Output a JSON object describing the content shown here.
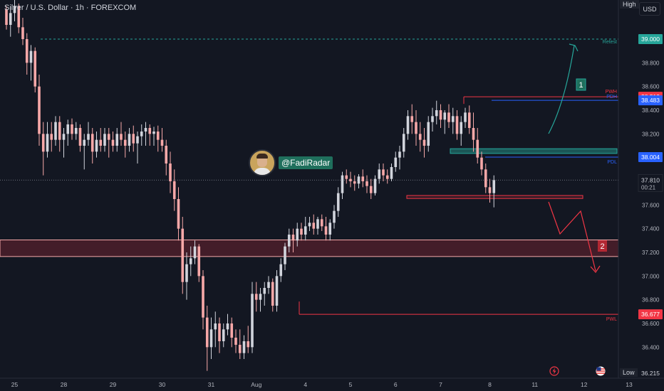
{
  "header": {
    "title": "Silver / U.S. Dollar · 1h · FOREXCOM",
    "currency": "USD"
  },
  "author": {
    "handle": "@FadiRadar"
  },
  "scale_tags": {
    "high": "High",
    "low": "Low"
  },
  "icons": {
    "alert": "flash-icon",
    "flag": "us-flag-icon"
  },
  "colors": {
    "bg": "#131722",
    "up": "#d1d4dc",
    "down": "#f7a8a8",
    "red": "#f23645",
    "teal": "#26a69a",
    "blue": "#2962ff"
  },
  "chart_data": {
    "type": "candlestick",
    "ylim": [
      36.15,
      39.33
    ],
    "y_ticks": [
      "38.800",
      "38.600",
      "38.400",
      "38.200",
      "37.800",
      "37.600",
      "37.400",
      "37.200",
      "37.000",
      "36.800",
      "36.600",
      "36.400"
    ],
    "x_labels": [
      {
        "label": "25",
        "idx": 2
      },
      {
        "label": "28",
        "idx": 14
      },
      {
        "label": "29",
        "idx": 26
      },
      {
        "label": "30",
        "idx": 38
      },
      {
        "label": "31",
        "idx": 50
      },
      {
        "label": "Aug",
        "idx": 61
      },
      {
        "label": "4",
        "idx": 73
      },
      {
        "label": "5",
        "idx": 84
      },
      {
        "label": "6",
        "idx": 95
      },
      {
        "label": "7",
        "idx": 106
      },
      {
        "label": "8",
        "idx": 118
      },
      {
        "label": "11",
        "idx": 129
      },
      {
        "label": "12",
        "idx": 141
      },
      {
        "label": "13",
        "idx": 152
      }
    ],
    "current_price": "37.810",
    "countdown": "00:21",
    "levels": [
      {
        "label": "Retest",
        "value": "39.000",
        "price": 39.0,
        "style": "dashed-teal"
      },
      {
        "label": "PWH",
        "value": "38.513",
        "price": 38.513,
        "style": "red"
      },
      {
        "label": "PDH",
        "value": "38.483",
        "price": 38.483,
        "style": "blue"
      },
      {
        "label": "PDL",
        "value": "38.004",
        "price": 38.004,
        "style": "blue"
      },
      {
        "label": "PWL",
        "value": "36.677",
        "price": 36.677,
        "style": "red"
      }
    ],
    "high_value": "",
    "low_value": "36.215",
    "zones": [
      {
        "name": "demand-zone",
        "from": 37.165,
        "to": 37.305
      },
      {
        "name": "resistance-zone",
        "from": 38.035,
        "to": 38.075
      },
      {
        "name": "support-band",
        "from": 37.655,
        "to": 37.68
      }
    ],
    "scenarios": [
      {
        "label": "1",
        "direction": "up"
      },
      {
        "label": "2",
        "direction": "down"
      }
    ],
    "candles": [
      [
        39.25,
        39.28,
        39.08,
        39.12
      ],
      [
        39.12,
        39.27,
        39.02,
        39.22
      ],
      [
        39.22,
        39.35,
        39.15,
        39.28
      ],
      [
        39.28,
        39.3,
        39.05,
        39.1
      ],
      [
        39.1,
        39.18,
        38.95,
        39.0
      ],
      [
        39.0,
        39.05,
        38.7,
        38.8
      ],
      [
        38.8,
        38.95,
        38.65,
        38.9
      ],
      [
        38.9,
        38.93,
        38.55,
        38.6
      ],
      [
        38.6,
        38.7,
        38.1,
        38.2
      ],
      [
        38.2,
        38.3,
        37.85,
        38.05
      ],
      [
        38.05,
        38.3,
        38.0,
        38.2
      ],
      [
        38.2,
        38.3,
        38.05,
        38.15
      ],
      [
        38.15,
        38.35,
        38.1,
        38.3
      ],
      [
        38.3,
        38.35,
        38.05,
        38.15
      ],
      [
        38.15,
        38.25,
        38.0,
        38.2
      ],
      [
        38.2,
        38.32,
        38.1,
        38.28
      ],
      [
        38.28,
        38.33,
        38.15,
        38.2
      ],
      [
        38.2,
        38.3,
        38.15,
        38.25
      ],
      [
        38.25,
        38.28,
        38.05,
        38.1
      ],
      [
        38.1,
        38.2,
        37.9,
        38.15
      ],
      [
        38.15,
        38.3,
        38.1,
        38.2
      ],
      [
        38.2,
        38.25,
        37.95,
        38.05
      ],
      [
        38.05,
        38.22,
        38.0,
        38.15
      ],
      [
        38.15,
        38.25,
        38.05,
        38.1
      ],
      [
        38.1,
        38.25,
        38.05,
        38.2
      ],
      [
        38.2,
        38.25,
        38.0,
        38.15
      ],
      [
        38.15,
        38.22,
        38.05,
        38.1
      ],
      [
        38.1,
        38.25,
        38.05,
        38.2
      ],
      [
        38.2,
        38.3,
        38.1,
        38.15
      ],
      [
        38.15,
        38.22,
        38.0,
        38.1
      ],
      [
        38.1,
        38.25,
        38.05,
        38.2
      ],
      [
        38.2,
        38.27,
        38.05,
        38.12
      ],
      [
        38.12,
        38.22,
        37.95,
        38.18
      ],
      [
        38.18,
        38.28,
        38.1,
        38.22
      ],
      [
        38.22,
        38.3,
        38.1,
        38.25
      ],
      [
        38.25,
        38.28,
        38.1,
        38.2
      ],
      [
        38.2,
        38.26,
        38.1,
        38.22
      ],
      [
        38.22,
        38.27,
        38.05,
        38.15
      ],
      [
        38.15,
        38.25,
        38.05,
        38.1
      ],
      [
        38.1,
        38.15,
        37.85,
        37.95
      ],
      [
        37.95,
        38.05,
        37.7,
        37.8
      ],
      [
        37.8,
        37.9,
        37.55,
        37.65
      ],
      [
        37.65,
        37.75,
        37.3,
        37.4
      ],
      [
        37.4,
        37.5,
        36.85,
        36.95
      ],
      [
        36.95,
        37.2,
        36.8,
        37.1
      ],
      [
        37.1,
        37.25,
        37.0,
        37.15
      ],
      [
        37.15,
        37.3,
        37.1,
        37.25
      ],
      [
        37.25,
        37.27,
        36.95,
        37.0
      ],
      [
        37.0,
        37.05,
        36.55,
        36.65
      ],
      [
        36.65,
        36.75,
        36.2,
        36.4
      ],
      [
        36.4,
        36.65,
        36.3,
        36.55
      ],
      [
        36.55,
        36.7,
        36.4,
        36.6
      ],
      [
        36.6,
        36.65,
        36.35,
        36.45
      ],
      [
        36.45,
        36.6,
        36.4,
        36.55
      ],
      [
        36.55,
        36.68,
        36.5,
        36.6
      ],
      [
        36.6,
        36.65,
        36.4,
        36.48
      ],
      [
        36.48,
        36.55,
        36.35,
        36.42
      ],
      [
        36.42,
        36.55,
        36.3,
        36.35
      ],
      [
        36.35,
        36.5,
        36.3,
        36.45
      ],
      [
        36.45,
        36.58,
        36.35,
        36.4
      ],
      [
        36.4,
        36.95,
        36.35,
        36.85
      ],
      [
        36.85,
        36.95,
        36.7,
        36.8
      ],
      [
        36.8,
        36.9,
        36.7,
        36.85
      ],
      [
        36.85,
        36.95,
        36.75,
        36.9
      ],
      [
        36.9,
        37.0,
        36.85,
        36.95
      ],
      [
        36.95,
        36.98,
        36.7,
        36.75
      ],
      [
        36.75,
        37.05,
        36.7,
        37.0
      ],
      [
        37.0,
        37.15,
        36.95,
        37.1
      ],
      [
        37.1,
        37.28,
        37.05,
        37.25
      ],
      [
        37.25,
        37.4,
        37.2,
        37.35
      ],
      [
        37.35,
        37.4,
        37.2,
        37.3
      ],
      [
        37.3,
        37.45,
        37.25,
        37.4
      ],
      [
        37.4,
        37.45,
        37.3,
        37.35
      ],
      [
        37.35,
        37.5,
        37.3,
        37.42
      ],
      [
        37.42,
        37.5,
        37.38,
        37.45
      ],
      [
        37.45,
        37.52,
        37.35,
        37.4
      ],
      [
        37.4,
        37.5,
        37.35,
        37.48
      ],
      [
        37.48,
        37.52,
        37.38,
        37.42
      ],
      [
        37.42,
        37.5,
        37.3,
        37.35
      ],
      [
        37.35,
        37.48,
        37.3,
        37.45
      ],
      [
        37.45,
        37.6,
        37.4,
        37.55
      ],
      [
        37.55,
        37.75,
        37.5,
        37.7
      ],
      [
        37.7,
        37.88,
        37.65,
        37.85
      ],
      [
        37.85,
        37.9,
        37.78,
        37.82
      ],
      [
        37.82,
        37.88,
        37.75,
        37.8
      ],
      [
        37.8,
        37.85,
        37.72,
        37.78
      ],
      [
        37.78,
        37.86,
        37.74,
        37.84
      ],
      [
        37.84,
        37.9,
        37.75,
        37.8
      ],
      [
        37.8,
        37.85,
        37.7,
        37.76
      ],
      [
        37.76,
        37.82,
        37.65,
        37.7
      ],
      [
        37.7,
        37.85,
        37.68,
        37.82
      ],
      [
        37.82,
        37.95,
        37.78,
        37.9
      ],
      [
        37.9,
        37.95,
        37.8,
        37.85
      ],
      [
        37.85,
        37.9,
        37.78,
        37.82
      ],
      [
        37.82,
        37.95,
        37.8,
        37.92
      ],
      [
        37.92,
        38.05,
        37.88,
        38.0
      ],
      [
        38.0,
        38.1,
        37.9,
        38.05
      ],
      [
        38.05,
        38.25,
        38.0,
        38.2
      ],
      [
        38.2,
        38.4,
        38.15,
        38.35
      ],
      [
        38.35,
        38.45,
        38.2,
        38.3
      ],
      [
        38.3,
        38.4,
        38.1,
        38.2
      ],
      [
        38.2,
        38.3,
        38.05,
        38.15
      ],
      [
        38.15,
        38.25,
        38.0,
        38.1
      ],
      [
        38.1,
        38.35,
        38.05,
        38.3
      ],
      [
        38.3,
        38.42,
        38.22,
        38.35
      ],
      [
        38.35,
        38.48,
        38.28,
        38.4
      ],
      [
        38.4,
        38.45,
        38.25,
        38.32
      ],
      [
        38.32,
        38.4,
        38.2,
        38.38
      ],
      [
        38.38,
        38.45,
        38.25,
        38.3
      ],
      [
        38.3,
        38.42,
        38.2,
        38.35
      ],
      [
        38.35,
        38.4,
        38.15,
        38.2
      ],
      [
        38.2,
        38.35,
        38.1,
        38.3
      ],
      [
        38.3,
        38.42,
        38.25,
        38.38
      ],
      [
        38.38,
        38.44,
        38.2,
        38.25
      ],
      [
        38.25,
        38.38,
        38.05,
        38.15
      ],
      [
        38.15,
        38.25,
        37.95,
        38.0
      ],
      [
        38.0,
        38.05,
        37.85,
        37.9
      ],
      [
        37.9,
        37.95,
        37.7,
        37.75
      ],
      [
        37.75,
        37.82,
        37.62,
        37.7
      ],
      [
        37.7,
        37.85,
        37.58,
        37.81
      ]
    ]
  }
}
